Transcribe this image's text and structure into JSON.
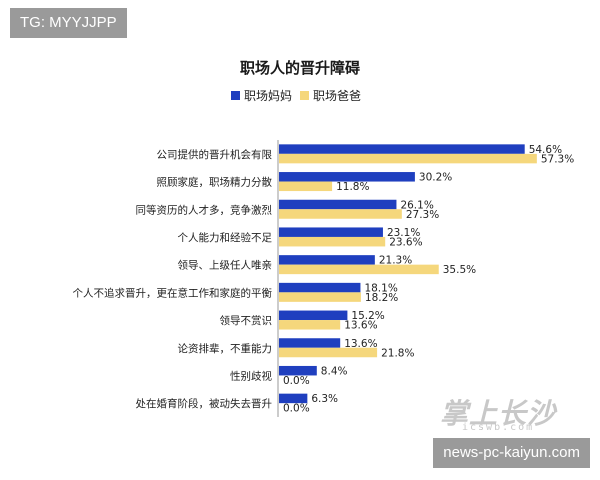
{
  "tags": {
    "top": "TG: MYYJJPP",
    "bottom": "news-pc-kaiyun.com"
  },
  "watermark": {
    "main": "掌上长沙",
    "sub": "icswb.com"
  },
  "colors": {
    "mom": "#1f3fbf",
    "dad": "#f5d77c"
  },
  "chart_data": {
    "type": "bar",
    "orientation": "horizontal",
    "title": "职场人的晋升障碍",
    "categories": [
      "公司提供的晋升机会有限",
      "照顾家庭，职场精力分散",
      "同等资历的人才多，竞争激烈",
      "个人能力和经验不足",
      "领导、上级任人唯亲",
      "个人不追求晋升，更在意工作和家庭的平衡",
      "领导不赏识",
      "论资排辈，不重能力",
      "性别歧视",
      "处在婚育阶段，被动失去晋升"
    ],
    "series": [
      {
        "name": "职场妈妈",
        "values": [
          54.6,
          30.2,
          26.1,
          23.1,
          21.3,
          18.1,
          15.2,
          13.6,
          8.4,
          6.3
        ],
        "labels": [
          "54.6%",
          "30.2%",
          "26.1%",
          "23.1%",
          "21.3%",
          "18.1%",
          "15.2%",
          "13.6%",
          "8.4%",
          "6.3%"
        ]
      },
      {
        "name": "职场爸爸",
        "values": [
          57.3,
          11.8,
          27.3,
          23.6,
          35.5,
          18.2,
          13.6,
          21.8,
          0.0,
          0.0
        ],
        "labels": [
          "57.3%",
          "11.8%",
          "27.3%",
          "23.6%",
          "35.5%",
          "18.2%",
          "13.6%",
          "21.8%",
          "0.0%",
          "0.0%"
        ]
      }
    ],
    "xlim": [
      0,
      60
    ],
    "legend": "top"
  }
}
